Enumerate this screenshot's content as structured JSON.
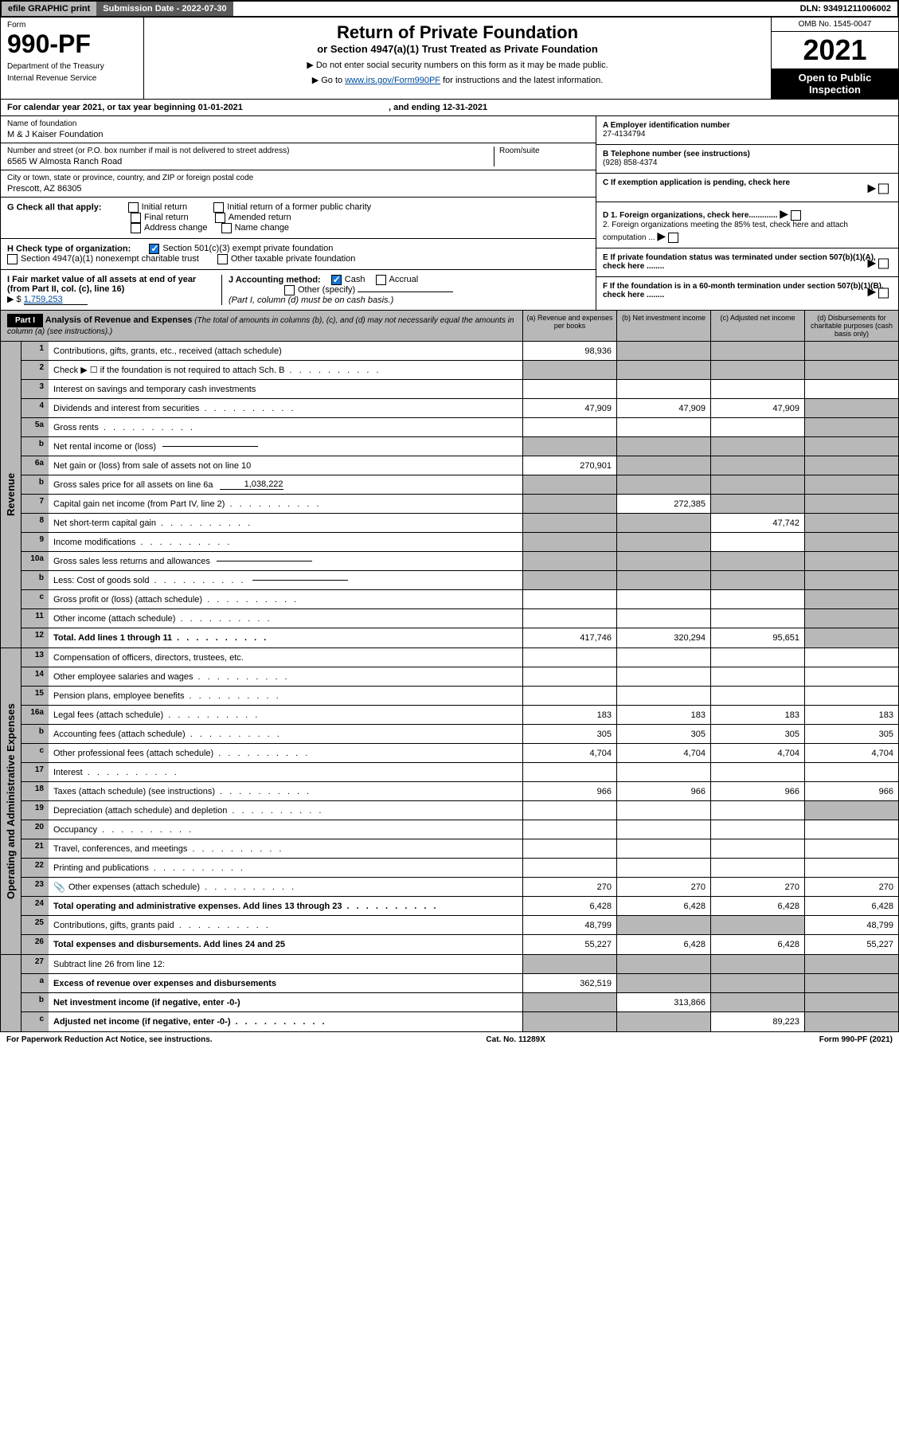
{
  "topbar": {
    "efile": "efile GRAPHIC print",
    "subdate_label": "Submission Date - 2022-07-30",
    "dln": "DLN: 93491211006002"
  },
  "header": {
    "form_word": "Form",
    "form_num": "990-PF",
    "dept": "Department of the Treasury",
    "irs": "Internal Revenue Service",
    "title": "Return of Private Foundation",
    "subtitle": "or Section 4947(a)(1) Trust Treated as Private Foundation",
    "instr1": "▶ Do not enter social security numbers on this form as it may be made public.",
    "instr2_pre": "▶ Go to ",
    "instr2_link": "www.irs.gov/Form990PF",
    "instr2_post": " for instructions and the latest information.",
    "omb": "OMB No. 1545-0047",
    "year": "2021",
    "open": "Open to Public Inspection"
  },
  "calendar": {
    "text": "For calendar year 2021, or tax year beginning 01-01-2021",
    "ending": ", and ending 12-31-2021"
  },
  "foundation": {
    "name_label": "Name of foundation",
    "name": "M & J Kaiser Foundation",
    "addr_label": "Number and street (or P.O. box number if mail is not delivered to street address)",
    "room_label": "Room/suite",
    "addr": "6565 W Almosta Ranch Road",
    "city_label": "City or town, state or province, country, and ZIP or foreign postal code",
    "city": "Prescott, AZ  86305"
  },
  "right_info": {
    "a_label": "A Employer identification number",
    "a_val": "27-4134794",
    "b_label": "B Telephone number (see instructions)",
    "b_val": "(928) 858-4374",
    "c_label": "C If exemption application is pending, check here",
    "d1": "D 1. Foreign organizations, check here.............",
    "d2": "2. Foreign organizations meeting the 85% test, check here and attach computation ...",
    "e": "E  If private foundation status was terminated under section 507(b)(1)(A), check here ........",
    "f": "F  If the foundation is in a 60-month termination under section 507(b)(1)(B), check here ........"
  },
  "g": {
    "label": "G Check all that apply:",
    "opts": [
      "Initial return",
      "Initial return of a former public charity",
      "Final return",
      "Amended return",
      "Address change",
      "Name change"
    ]
  },
  "h": {
    "label": "H Check type of organization:",
    "opt1": "Section 501(c)(3) exempt private foundation",
    "opt2": "Section 4947(a)(1) nonexempt charitable trust",
    "opt3": "Other taxable private foundation"
  },
  "i": {
    "label": "I Fair market value of all assets at end of year (from Part II, col. (c), line 16)",
    "val": "1,759,253",
    "prefix": "▶ $"
  },
  "j": {
    "label": "J Accounting method:",
    "cash": "Cash",
    "accrual": "Accrual",
    "other": "Other (specify)",
    "note": "(Part I, column (d) must be on cash basis.)"
  },
  "part1": {
    "label": "Part I",
    "title": "Analysis of Revenue and Expenses",
    "note": "(The total of amounts in columns (b), (c), and (d) may not necessarily equal the amounts in column (a) (see instructions).)",
    "col_a": "(a)   Revenue and expenses per books",
    "col_b": "(b)   Net investment income",
    "col_c": "(c)   Adjusted net income",
    "col_d": "(d)   Disbursements for charitable purposes (cash basis only)"
  },
  "sides": {
    "revenue": "Revenue",
    "expenses": "Operating and Administrative Expenses"
  },
  "rows": [
    {
      "n": "1",
      "d": "Contributions, gifts, grants, etc., received (attach schedule)",
      "a": "98,936",
      "shade_bcd": true
    },
    {
      "n": "2",
      "d": "Check ▶ ☐ if the foundation is not required to attach Sch. B",
      "dots": true,
      "shade_all": true
    },
    {
      "n": "3",
      "d": "Interest on savings and temporary cash investments"
    },
    {
      "n": "4",
      "d": "Dividends and interest from securities",
      "dots": true,
      "a": "47,909",
      "b": "47,909",
      "c": "47,909",
      "shade_d": true
    },
    {
      "n": "5a",
      "d": "Gross rents",
      "dots": true,
      "shade_d": true
    },
    {
      "n": "b",
      "d": "Net rental income or (loss)",
      "inline": true,
      "shade_all": true
    },
    {
      "n": "6a",
      "d": "Net gain or (loss) from sale of assets not on line 10",
      "a": "270,901",
      "shade_bcd": true
    },
    {
      "n": "b",
      "d": "Gross sales price for all assets on line 6a",
      "inline_val": "1,038,222",
      "shade_all": true
    },
    {
      "n": "7",
      "d": "Capital gain net income (from Part IV, line 2)",
      "dots": true,
      "b": "272,385",
      "shade_a": true,
      "shade_cd": true
    },
    {
      "n": "8",
      "d": "Net short-term capital gain",
      "dots": true,
      "c": "47,742",
      "shade_ab": true,
      "shade_d": true
    },
    {
      "n": "9",
      "d": "Income modifications",
      "dots": true,
      "shade_ab": true,
      "shade_d": true
    },
    {
      "n": "10a",
      "d": "Gross sales less returns and allowances",
      "inline": true,
      "shade_all": true
    },
    {
      "n": "b",
      "d": "Less: Cost of goods sold",
      "dots": true,
      "inline": true,
      "shade_all": true
    },
    {
      "n": "c",
      "d": "Gross profit or (loss) (attach schedule)",
      "dots": true,
      "shade_d": true
    },
    {
      "n": "11",
      "d": "Other income (attach schedule)",
      "dots": true,
      "shade_d": true
    },
    {
      "n": "12",
      "d": "Total. Add lines 1 through 11",
      "dots": true,
      "bold": true,
      "a": "417,746",
      "b": "320,294",
      "c": "95,651",
      "shade_d": true
    }
  ],
  "exp_rows": [
    {
      "n": "13",
      "d": "Compensation of officers, directors, trustees, etc."
    },
    {
      "n": "14",
      "d": "Other employee salaries and wages",
      "dots": true
    },
    {
      "n": "15",
      "d": "Pension plans, employee benefits",
      "dots": true
    },
    {
      "n": "16a",
      "d": "Legal fees (attach schedule)",
      "dots": true,
      "a": "183",
      "b": "183",
      "c": "183",
      "dd": "183"
    },
    {
      "n": "b",
      "d": "Accounting fees (attach schedule)",
      "dots": true,
      "a": "305",
      "b": "305",
      "c": "305",
      "dd": "305"
    },
    {
      "n": "c",
      "d": "Other professional fees (attach schedule)",
      "dots": true,
      "a": "4,704",
      "b": "4,704",
      "c": "4,704",
      "dd": "4,704"
    },
    {
      "n": "17",
      "d": "Interest",
      "dots": true
    },
    {
      "n": "18",
      "d": "Taxes (attach schedule) (see instructions)",
      "dots": true,
      "a": "966",
      "b": "966",
      "c": "966",
      "dd": "966"
    },
    {
      "n": "19",
      "d": "Depreciation (attach schedule) and depletion",
      "dots": true,
      "shade_d": true
    },
    {
      "n": "20",
      "d": "Occupancy",
      "dots": true
    },
    {
      "n": "21",
      "d": "Travel, conferences, and meetings",
      "dots": true
    },
    {
      "n": "22",
      "d": "Printing and publications",
      "dots": true
    },
    {
      "n": "23",
      "d": "Other expenses (attach schedule)",
      "dots": true,
      "icon": true,
      "a": "270",
      "b": "270",
      "c": "270",
      "dd": "270"
    },
    {
      "n": "24",
      "d": "Total operating and administrative expenses. Add lines 13 through 23",
      "dots": true,
      "bold": true,
      "a": "6,428",
      "b": "6,428",
      "c": "6,428",
      "dd": "6,428"
    },
    {
      "n": "25",
      "d": "Contributions, gifts, grants paid",
      "dots": true,
      "a": "48,799",
      "shade_bc": true,
      "dd": "48,799"
    },
    {
      "n": "26",
      "d": "Total expenses and disbursements. Add lines 24 and 25",
      "bold": true,
      "a": "55,227",
      "b": "6,428",
      "c": "6,428",
      "dd": "55,227"
    }
  ],
  "bottom_rows": [
    {
      "n": "27",
      "d": "Subtract line 26 from line 12:",
      "shade_all": true
    },
    {
      "n": "a",
      "d": "Excess of revenue over expenses and disbursements",
      "bold": true,
      "a": "362,519",
      "shade_bcd": true
    },
    {
      "n": "b",
      "d": "Net investment income (if negative, enter -0-)",
      "bold": true,
      "b": "313,866",
      "shade_a": true,
      "shade_cd": true
    },
    {
      "n": "c",
      "d": "Adjusted net income (if negative, enter -0-)",
      "dots": true,
      "bold": true,
      "c": "89,223",
      "shade_ab": true,
      "shade_d": true
    }
  ],
  "footer": {
    "left": "For Paperwork Reduction Act Notice, see instructions.",
    "mid": "Cat. No. 11289X",
    "right": "Form 990-PF (2021)"
  }
}
